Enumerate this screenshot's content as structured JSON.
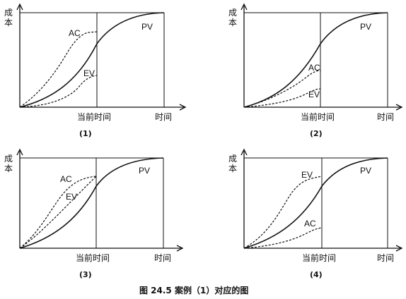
{
  "axis_labels": {
    "y": "成本",
    "x_now": "当前时间",
    "x_end": "时间"
  },
  "curve_labels": {
    "pv": "PV",
    "ac": "AC",
    "ev": "EV"
  },
  "panels": [
    {
      "caption": "(1)"
    },
    {
      "caption": "(2)"
    },
    {
      "caption": "(3)"
    },
    {
      "caption": "(4)"
    }
  ],
  "figure_caption": "图 24.5   案例（1）对应的图"
}
